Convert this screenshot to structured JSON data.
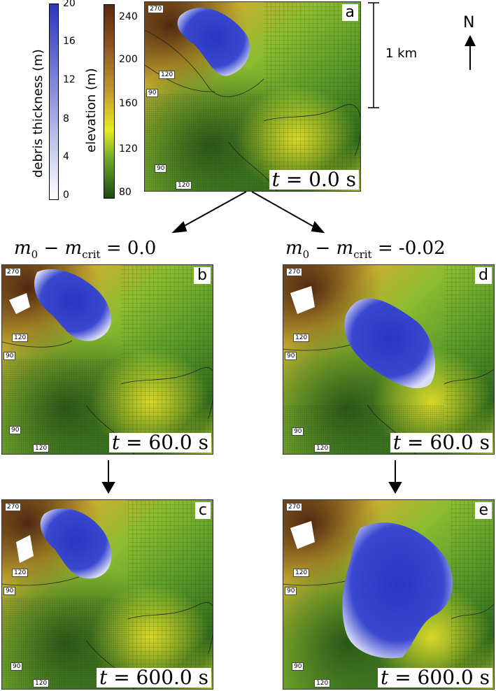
{
  "colorbars": {
    "debris": {
      "label": "debris thickness (m)",
      "ticks": [
        "20",
        "16",
        "12",
        "8",
        "4",
        "0"
      ],
      "colors": {
        "top": "#2a35c0",
        "bottom": "#ffffff"
      }
    },
    "elevation": {
      "label": "elevation (m)",
      "ticks": [
        "240",
        "200",
        "160",
        "120",
        "80"
      ]
    }
  },
  "scale": {
    "label": "1 km"
  },
  "north": {
    "label": "N"
  },
  "headings": {
    "left": {
      "m0": "m",
      "sub0": "0",
      "minus": " − ",
      "mc": "m",
      "subc": "crit",
      "value": " = 0.0"
    },
    "right": {
      "m0": "m",
      "sub0": "0",
      "minus": " − ",
      "mc": "m",
      "subc": "crit",
      "value": " = -0.02"
    }
  },
  "panels": [
    {
      "id": "a",
      "letter": "a",
      "time": "t",
      "time_rest": " = 0.0 s",
      "contours": [
        "270",
        "120",
        "90",
        "90",
        "120"
      ]
    },
    {
      "id": "b",
      "letter": "b",
      "time": "t",
      "time_rest": " = 60.0 s",
      "contours": [
        "270",
        "120",
        "90",
        "90",
        "120"
      ]
    },
    {
      "id": "c",
      "letter": "c",
      "time": "t",
      "time_rest": " = 600.0 s",
      "contours": [
        "270",
        "120",
        "90",
        "90",
        "120"
      ]
    },
    {
      "id": "d",
      "letter": "d",
      "time": "t",
      "time_rest": " = 60.0 s",
      "contours": [
        "270",
        "120",
        "90",
        "90",
        "120"
      ]
    },
    {
      "id": "e",
      "letter": "e",
      "time": "t",
      "time_rest": " = 600.0 s",
      "contours": [
        "270",
        "120",
        "90",
        "90",
        "120"
      ]
    }
  ]
}
